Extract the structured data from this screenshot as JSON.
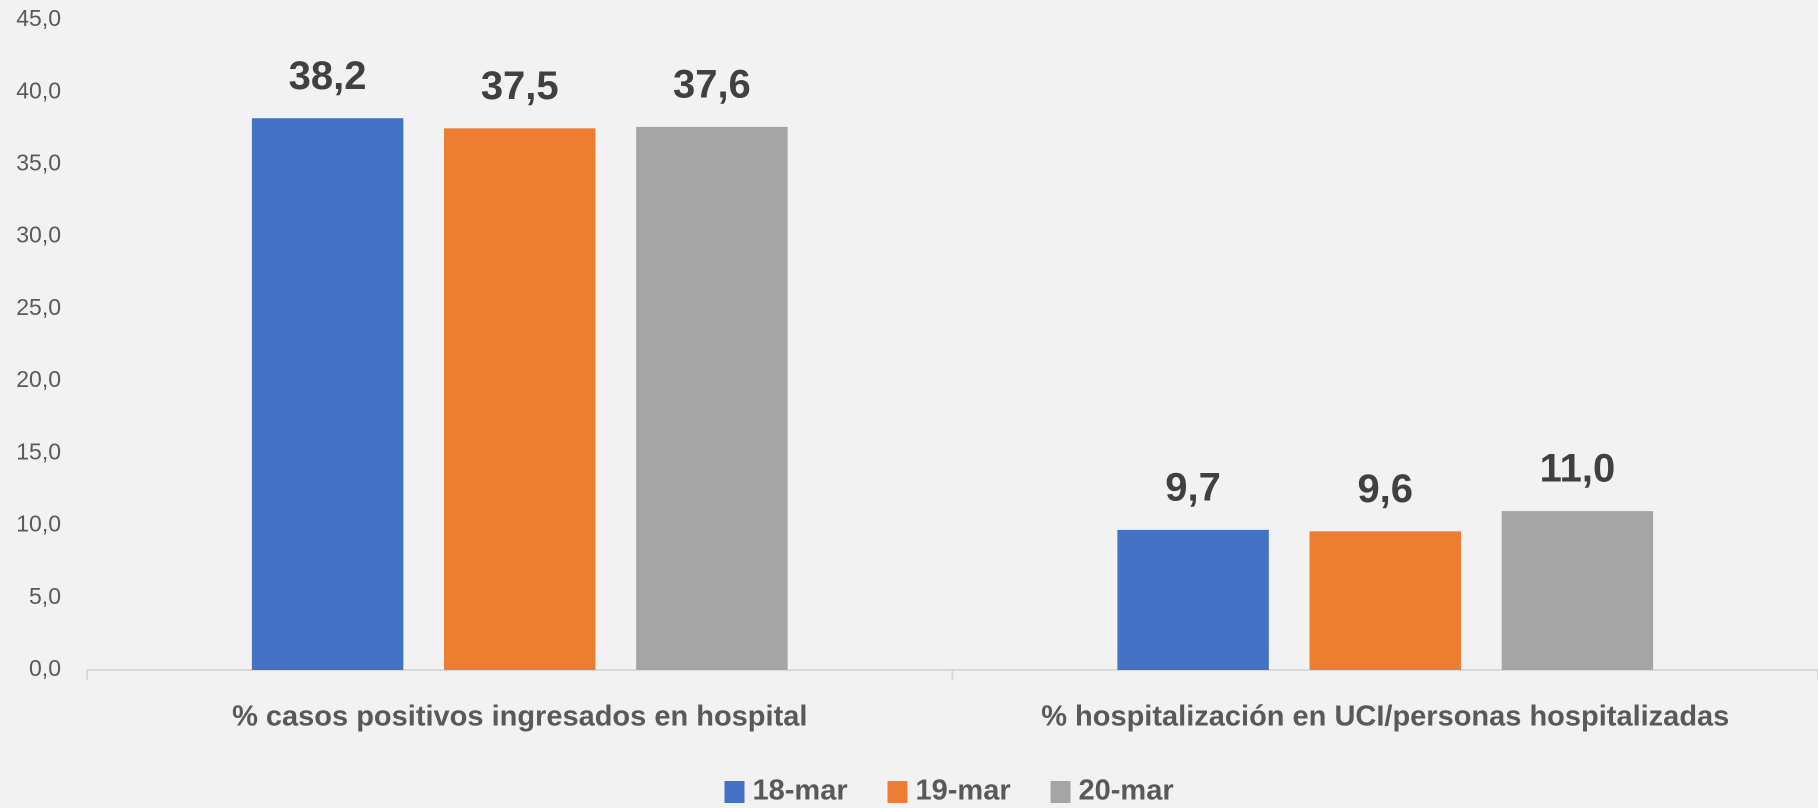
{
  "chart_data": {
    "type": "bar",
    "categories": [
      "% casos positivos ingresados en hospital",
      "% hospitalización en UCI/personas hospitalizadas"
    ],
    "series": [
      {
        "name": "18-mar",
        "color": "#4472c4",
        "values": [
          38.2,
          9.7
        ],
        "value_labels": [
          "38,2",
          "9,7"
        ]
      },
      {
        "name": "19-mar",
        "color": "#ed7d31",
        "values": [
          37.5,
          9.6
        ],
        "value_labels": [
          "37,5",
          "9,6"
        ]
      },
      {
        "name": "20-mar",
        "color": "#a5a5a5",
        "values": [
          37.6,
          11.0
        ],
        "value_labels": [
          "37,6",
          "11,0"
        ]
      }
    ],
    "ylim": [
      0,
      45
    ],
    "yticks": [
      {
        "value": 0,
        "label": "0,0"
      },
      {
        "value": 5,
        "label": "5,0"
      },
      {
        "value": 10,
        "label": "10,0"
      },
      {
        "value": 15,
        "label": "15,0"
      },
      {
        "value": 20,
        "label": "20,0"
      },
      {
        "value": 25,
        "label": "25,0"
      },
      {
        "value": 30,
        "label": "30,0"
      },
      {
        "value": 35,
        "label": "35,0"
      },
      {
        "value": 40,
        "label": "40,0"
      },
      {
        "value": 45,
        "label": "45,0"
      }
    ],
    "grid": false,
    "legend": "bottom"
  }
}
